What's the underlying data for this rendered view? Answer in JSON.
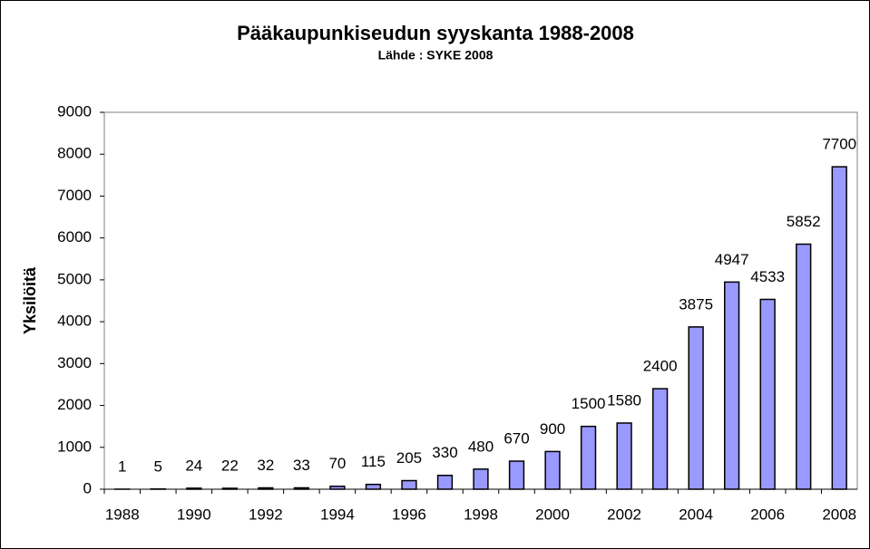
{
  "chart_data": {
    "type": "bar",
    "title": "Pääkaupunkiseudun syyskanta 1988-2008",
    "subtitle": "Lähde : SYKE 2008",
    "y_label": "Yksilöitä",
    "categories": [
      "1988",
      null,
      "1990",
      null,
      "1992",
      null,
      "1994",
      null,
      "1996",
      null,
      "1998",
      null,
      "2000",
      null,
      "2002",
      null,
      "2004",
      null,
      "2006",
      null,
      "2008"
    ],
    "values": [
      1,
      5,
      24,
      22,
      32,
      33,
      70,
      115,
      205,
      330,
      480,
      670,
      900,
      1500,
      1580,
      2400,
      3875,
      4947,
      4533,
      5852,
      7700
    ],
    "color": "#9999ff",
    "ylim": [
      0,
      9000
    ],
    "yticks": [
      0,
      1000,
      2000,
      3000,
      4000,
      5000,
      6000,
      7000,
      8000,
      9000
    ],
    "grid": false
  }
}
